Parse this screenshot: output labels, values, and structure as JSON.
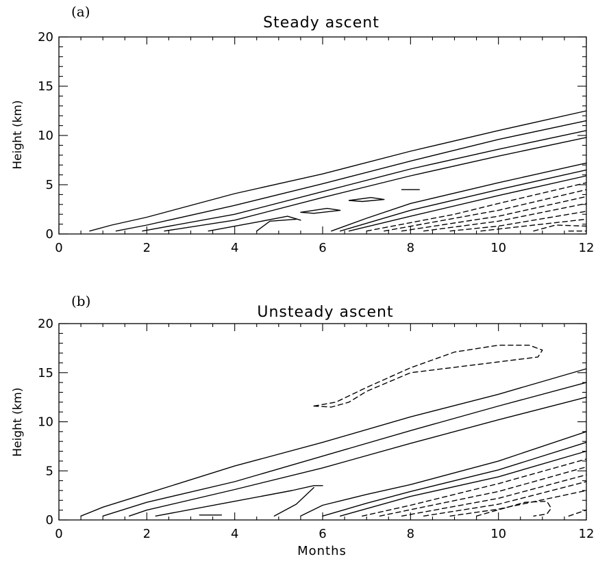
{
  "chart_data": [
    {
      "type": "line",
      "panel_label": "(a)",
      "title": "Steady ascent",
      "xlabel": "",
      "ylabel": "Height (km)",
      "xlim": [
        0,
        12
      ],
      "ylim": [
        0,
        20
      ],
      "xticks": [
        "0",
        "2",
        "4",
        "6",
        "8",
        "10",
        "12"
      ],
      "yticks": [
        "0",
        "5",
        "10",
        "15",
        "20"
      ],
      "contours": [
        {
          "style": "solid",
          "points": [
            [
              0.7,
              0.3
            ],
            [
              1.2,
              0.9
            ],
            [
              2,
              1.7
            ],
            [
              4,
              4.1
            ],
            [
              6,
              6.1
            ],
            [
              8,
              8.4
            ],
            [
              10,
              10.5
            ],
            [
              12,
              12.5
            ]
          ]
        },
        {
          "style": "solid",
          "points": [
            [
              1.3,
              0.3
            ],
            [
              2,
              0.9
            ],
            [
              4,
              2.9
            ],
            [
              6,
              5.1
            ],
            [
              8,
              7.4
            ],
            [
              10,
              9.6
            ],
            [
              12,
              11.5
            ]
          ]
        },
        {
          "style": "solid",
          "points": [
            [
              1.9,
              0.3
            ],
            [
              4,
              2.0
            ],
            [
              6,
              4.3
            ],
            [
              8,
              6.6
            ],
            [
              10,
              8.6
            ],
            [
              12,
              10.5
            ]
          ]
        },
        {
          "style": "solid",
          "points": [
            [
              2.4,
              0.3
            ],
            [
              4,
              1.4
            ],
            [
              6,
              3.7
            ],
            [
              8,
              5.9
            ],
            [
              10,
              7.9
            ],
            [
              12,
              9.8
            ]
          ]
        },
        {
          "style": "solid",
          "points": [
            [
              3.4,
              0.3
            ],
            [
              4.5,
              1.2
            ],
            [
              5.2,
              1.8
            ],
            [
              5.5,
              1.4
            ]
          ]
        },
        {
          "style": "solid",
          "points": [
            [
              4.5,
              0.3
            ],
            [
              4.8,
              1.3
            ],
            [
              5.4,
              1.5
            ]
          ]
        },
        {
          "style": "solid",
          "points": [
            [
              5.5,
              2.2
            ],
            [
              6.1,
              2.6
            ],
            [
              6.4,
              2.4
            ],
            [
              5.8,
              2.1
            ],
            [
              5.5,
              2.2
            ]
          ]
        },
        {
          "style": "solid",
          "points": [
            [
              6.6,
              3.4
            ],
            [
              7.1,
              3.7
            ],
            [
              7.4,
              3.5
            ],
            [
              6.9,
              3.3
            ],
            [
              6.6,
              3.4
            ]
          ]
        },
        {
          "style": "solid",
          "points": [
            [
              7.8,
              4.5
            ],
            [
              8.2,
              4.5
            ]
          ]
        },
        {
          "style": "solid",
          "points": [
            [
              6.2,
              0.3
            ],
            [
              7,
              1.6
            ],
            [
              8,
              3.1
            ],
            [
              10,
              5.2
            ],
            [
              12,
              7.2
            ]
          ]
        },
        {
          "style": "solid",
          "points": [
            [
              6.4,
              0.3
            ],
            [
              8,
              2.4
            ],
            [
              10,
              4.5
            ],
            [
              12,
              6.5
            ]
          ]
        },
        {
          "style": "solid",
          "points": [
            [
              6.6,
              0.3
            ],
            [
              8,
              1.8
            ],
            [
              10,
              3.9
            ],
            [
              12,
              5.9
            ]
          ]
        },
        {
          "style": "dashed",
          "points": [
            [
              7.0,
              0.3
            ],
            [
              9,
              2.0
            ],
            [
              10,
              3.1
            ],
            [
              12,
              5.2
            ]
          ]
        },
        {
          "style": "dashed",
          "points": [
            [
              7.4,
              0.3
            ],
            [
              10,
              2.4
            ],
            [
              12,
              4.5
            ]
          ]
        },
        {
          "style": "dashed",
          "points": [
            [
              7.8,
              0.3
            ],
            [
              10,
              1.8
            ],
            [
              12,
              3.8
            ]
          ]
        },
        {
          "style": "dashed",
          "points": [
            [
              8.3,
              0.3
            ],
            [
              10,
              1.3
            ],
            [
              12,
              3.1
            ]
          ]
        },
        {
          "style": "dashed",
          "points": [
            [
              8.9,
              0.3
            ],
            [
              10,
              0.8
            ],
            [
              12,
              2.3
            ]
          ]
        },
        {
          "style": "dashed",
          "points": [
            [
              9.6,
              0.3
            ],
            [
              12,
              1.5
            ]
          ]
        },
        {
          "style": "dashed",
          "points": [
            [
              10.8,
              0.3
            ],
            [
              11.3,
              0.9
            ],
            [
              12,
              0.8
            ]
          ]
        },
        {
          "style": "dashed",
          "points": [
            [
              11.6,
              0.3
            ],
            [
              12,
              0.3
            ]
          ]
        }
      ]
    },
    {
      "type": "line",
      "panel_label": "(b)",
      "title": "Unsteady ascent",
      "xlabel": "Months",
      "ylabel": "Height (km)",
      "xlim": [
        0,
        12
      ],
      "ylim": [
        0,
        20
      ],
      "xticks": [
        "0",
        "2",
        "4",
        "6",
        "8",
        "10",
        "12"
      ],
      "yticks": [
        "0",
        "5",
        "10",
        "15",
        "20"
      ],
      "contours": [
        {
          "style": "solid",
          "points": [
            [
              0.5,
              0.4
            ],
            [
              1,
              1.3
            ],
            [
              2,
              2.7
            ],
            [
              4,
              5.5
            ],
            [
              6,
              7.9
            ],
            [
              8,
              10.5
            ],
            [
              10,
              12.8
            ],
            [
              12,
              15.4
            ]
          ]
        },
        {
          "style": "solid",
          "points": [
            [
              1.0,
              0.4
            ],
            [
              2,
              1.8
            ],
            [
              4,
              3.9
            ],
            [
              6,
              6.5
            ],
            [
              8,
              9.1
            ],
            [
              10,
              11.6
            ],
            [
              12,
              14.0
            ]
          ]
        },
        {
          "style": "solid",
          "points": [
            [
              1.6,
              0.4
            ],
            [
              2,
              1.0
            ],
            [
              4,
              3.1
            ],
            [
              6,
              5.3
            ],
            [
              8,
              7.8
            ],
            [
              10,
              10.2
            ],
            [
              12,
              12.5
            ]
          ]
        },
        {
          "style": "solid",
          "points": [
            [
              2.2,
              0.4
            ],
            [
              4,
              1.9
            ],
            [
              5.3,
              3.0
            ],
            [
              5.8,
              3.5
            ],
            [
              6,
              3.5
            ]
          ]
        },
        {
          "style": "solid",
          "points": [
            [
              3.2,
              0.5
            ],
            [
              3.7,
              0.5
            ]
          ]
        },
        {
          "style": "solid",
          "points": [
            [
              4.9,
              0.4
            ],
            [
              5.4,
              1.6
            ],
            [
              5.8,
              3.3
            ]
          ]
        },
        {
          "style": "solid",
          "points": [
            [
              5.5,
              0.4
            ],
            [
              6,
              1.5
            ],
            [
              7,
              2.6
            ],
            [
              8,
              3.6
            ],
            [
              10,
              6.0
            ],
            [
              12,
              9.0
            ]
          ]
        },
        {
          "style": "solid",
          "points": [
            [
              6.0,
              0.4
            ],
            [
              7,
              1.7
            ],
            [
              8,
              2.9
            ],
            [
              10,
              5.1
            ],
            [
              12,
              7.9
            ]
          ]
        },
        {
          "style": "solid",
          "points": [
            [
              6.4,
              0.4
            ],
            [
              8,
              2.4
            ],
            [
              10,
              4.4
            ],
            [
              12,
              7.0
            ]
          ]
        },
        {
          "style": "dashed",
          "points": [
            [
              6.9,
              0.4
            ],
            [
              8,
              1.5
            ],
            [
              10,
              3.7
            ],
            [
              12,
              6.2
            ]
          ]
        },
        {
          "style": "dashed",
          "points": [
            [
              7.3,
              0.4
            ],
            [
              10,
              2.9
            ],
            [
              12,
              5.4
            ]
          ]
        },
        {
          "style": "dashed",
          "points": [
            [
              7.8,
              0.4
            ],
            [
              10,
              2.2
            ],
            [
              12,
              4.6
            ]
          ]
        },
        {
          "style": "dashed",
          "points": [
            [
              8.3,
              0.4
            ],
            [
              10,
              1.6
            ],
            [
              12,
              3.9
            ]
          ]
        },
        {
          "style": "dashed",
          "points": [
            [
              8.9,
              0.4
            ],
            [
              10,
              1.1
            ],
            [
              12,
              3.0
            ]
          ]
        },
        {
          "style": "dashed",
          "points": [
            [
              9.5,
              0.4
            ],
            [
              10.6,
              1.8
            ],
            [
              11.1,
              1.9
            ],
            [
              11.2,
              1.2
            ],
            [
              11.1,
              0.6
            ],
            [
              10.8,
              0.4
            ]
          ]
        },
        {
          "style": "dashed",
          "points": [
            [
              11.6,
              0.4
            ],
            [
              12,
              1.0
            ]
          ]
        },
        {
          "style": "dashed",
          "points": [
            [
              5.8,
              11.6
            ],
            [
              6.3,
              12.0
            ],
            [
              7,
              13.5
            ],
            [
              8,
              15.5
            ],
            [
              9,
              17.1
            ],
            [
              10,
              17.8
            ],
            [
              10.7,
              17.8
            ],
            [
              11,
              17.3
            ],
            [
              10.9,
              16.6
            ],
            [
              10,
              16.1
            ],
            [
              8,
              15.0
            ],
            [
              7,
              13.1
            ],
            [
              6.6,
              12.0
            ],
            [
              6.2,
              11.5
            ],
            [
              5.8,
              11.6
            ]
          ]
        }
      ]
    }
  ]
}
